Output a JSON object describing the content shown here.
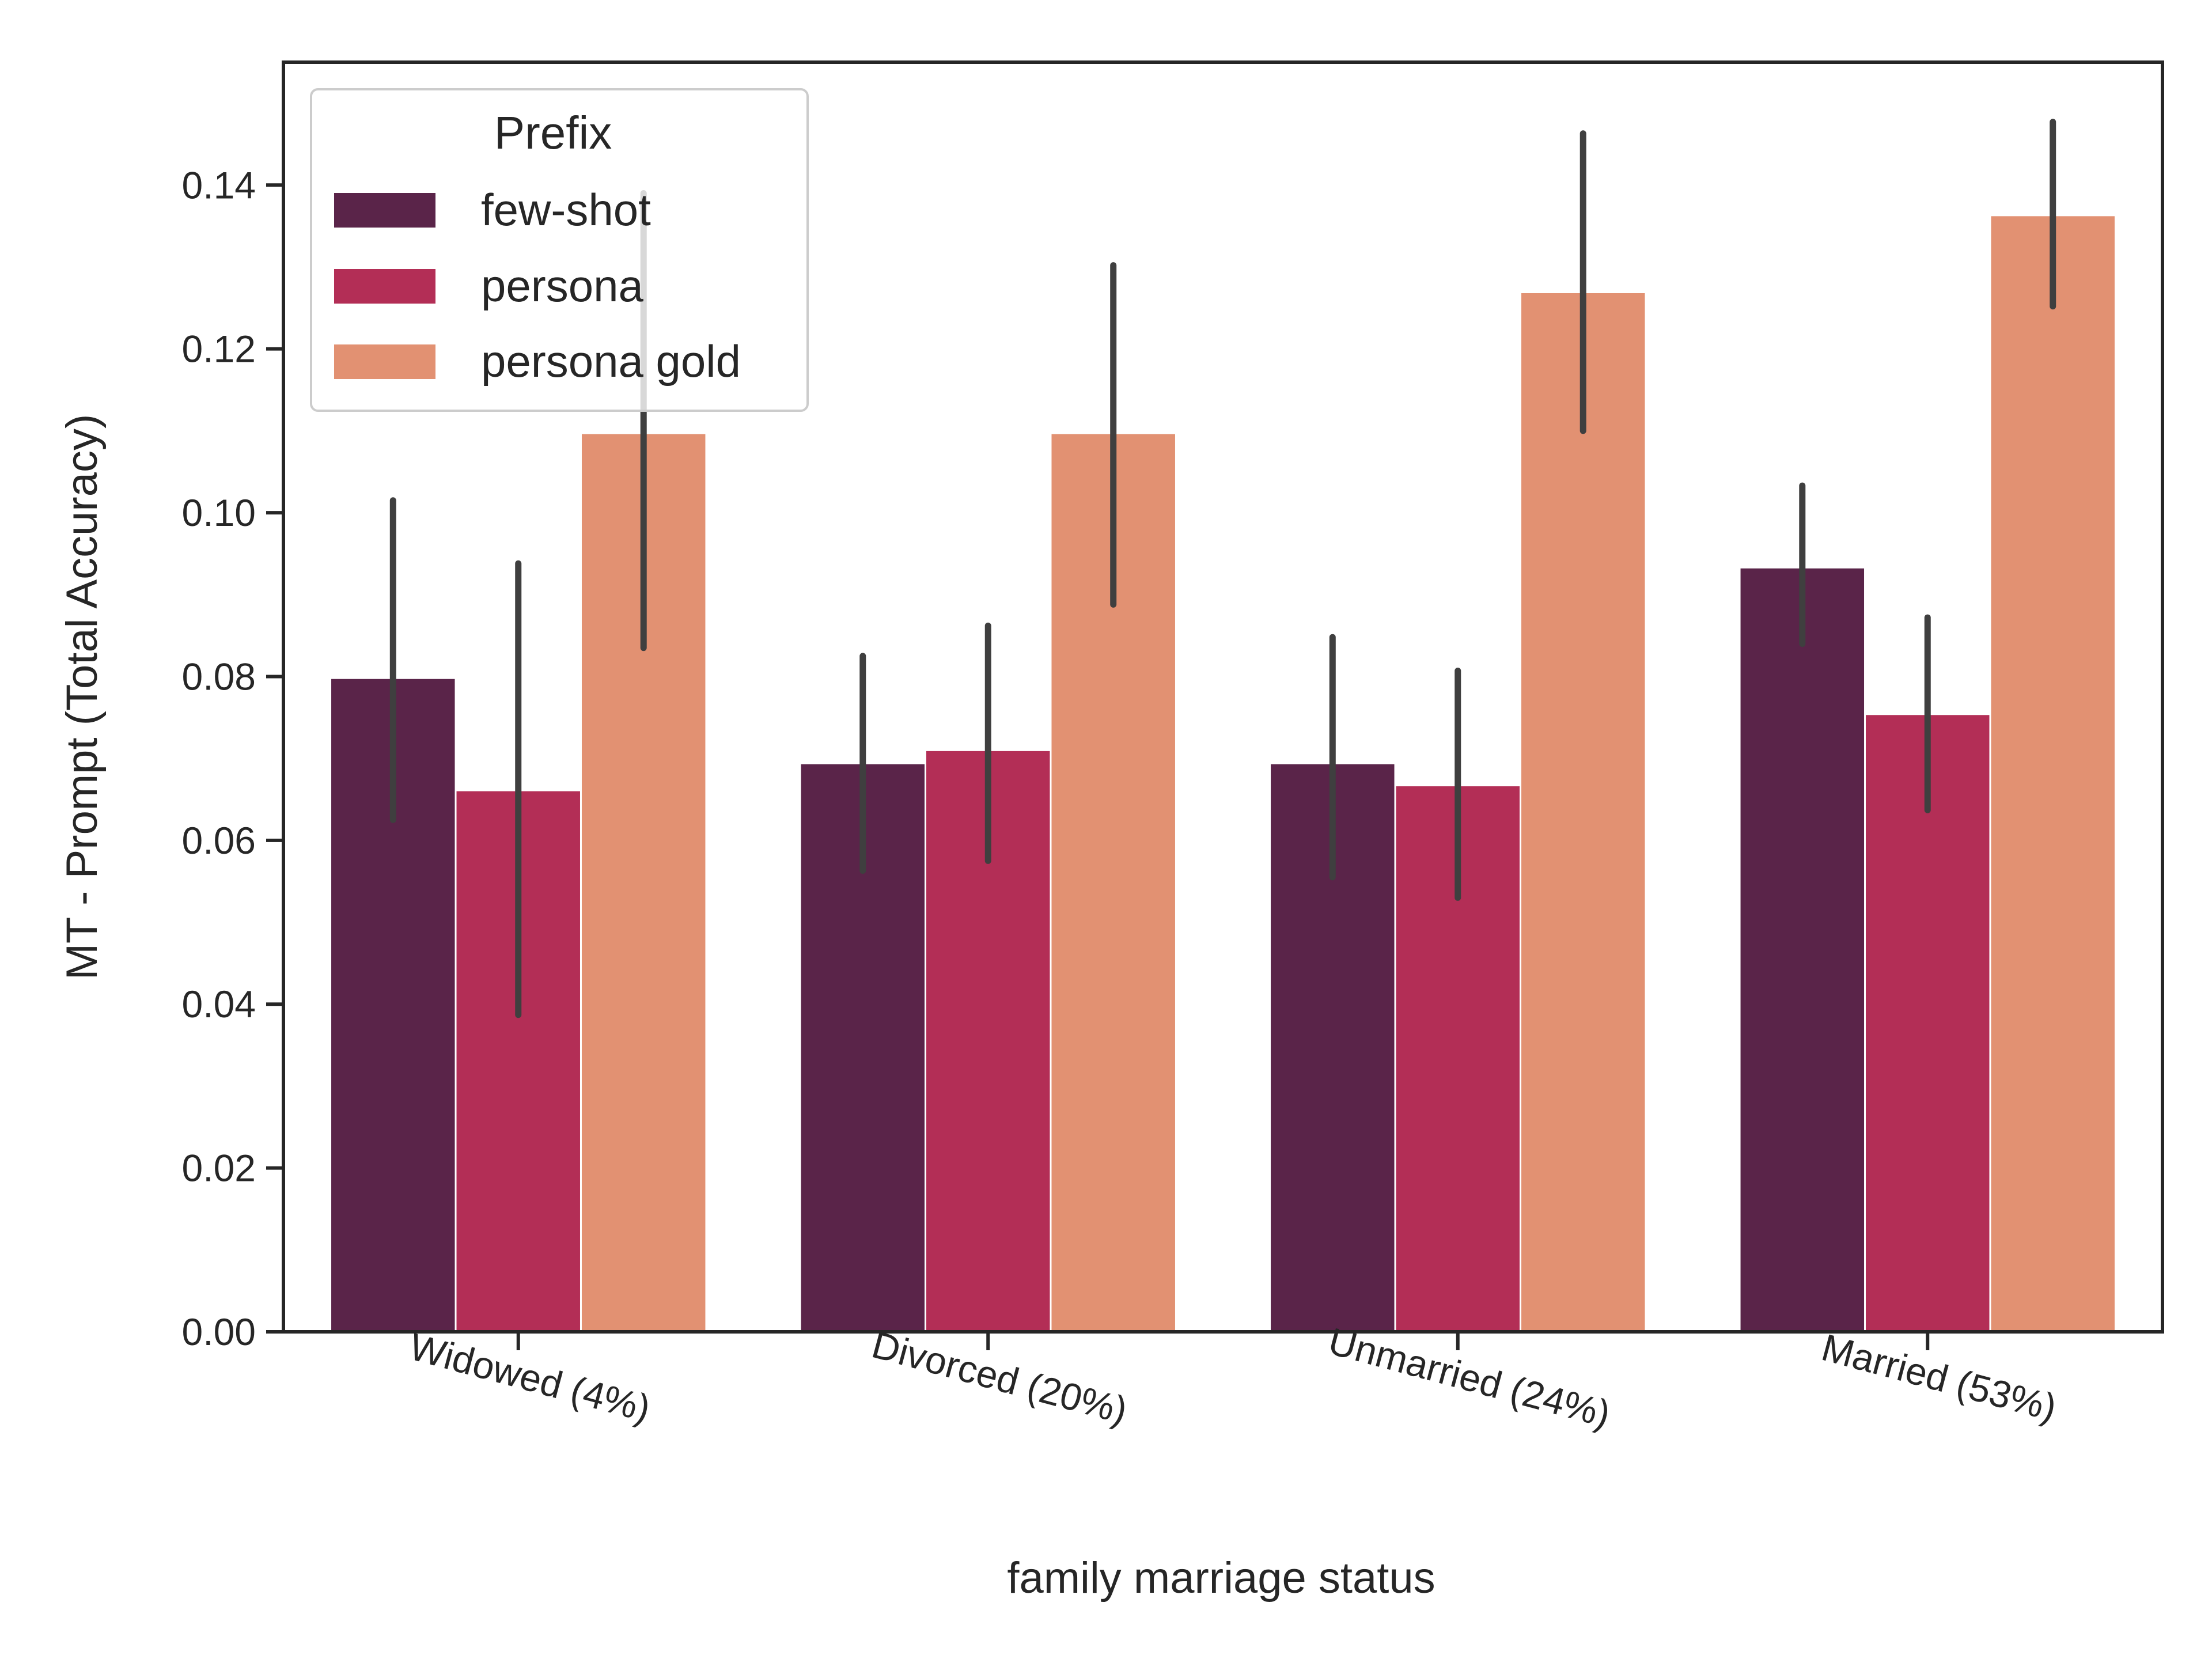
{
  "chart_data": {
    "type": "bar",
    "title": "",
    "xlabel": "family marriage status",
    "ylabel": "MT - Prompt (Total Accuracy)",
    "categories": [
      "Widowed (4%)",
      "Divorced (20%)",
      "Unmarried (24%)",
      "Married (53%)"
    ],
    "ylim": [
      0,
      0.155
    ],
    "yticks": [
      0.0,
      0.02,
      0.04,
      0.06,
      0.08,
      0.1,
      0.12,
      0.14
    ],
    "ytick_labels": [
      "0.00",
      "0.02",
      "0.04",
      "0.06",
      "0.08",
      "0.10",
      "0.12",
      "0.14"
    ],
    "grid": false,
    "legend": {
      "title": "Prefix",
      "placement": "top-left"
    },
    "series": [
      {
        "name": "few-shot",
        "color": "#5a2449",
        "values": [
          0.0797,
          0.0693,
          0.0693,
          0.0932
        ],
        "ci_low": [
          0.0625,
          0.0563,
          0.0555,
          0.084
        ],
        "ci_high": [
          0.1015,
          0.0825,
          0.0848,
          0.1033
        ]
      },
      {
        "name": "persona",
        "color": "#b32e56",
        "values": [
          0.066,
          0.0709,
          0.0666,
          0.0753
        ],
        "ci_low": [
          0.0387,
          0.0575,
          0.053,
          0.0637
        ],
        "ci_high": [
          0.0938,
          0.0862,
          0.0807,
          0.0872
        ]
      },
      {
        "name": "persona gold",
        "color": "#e29172",
        "values": [
          0.1096,
          0.1096,
          0.1268,
          0.1362
        ],
        "ci_low": [
          0.0835,
          0.0888,
          0.11,
          0.1252
        ],
        "ci_high": [
          0.139,
          0.1302,
          0.1463,
          0.1477
        ]
      }
    ]
  }
}
